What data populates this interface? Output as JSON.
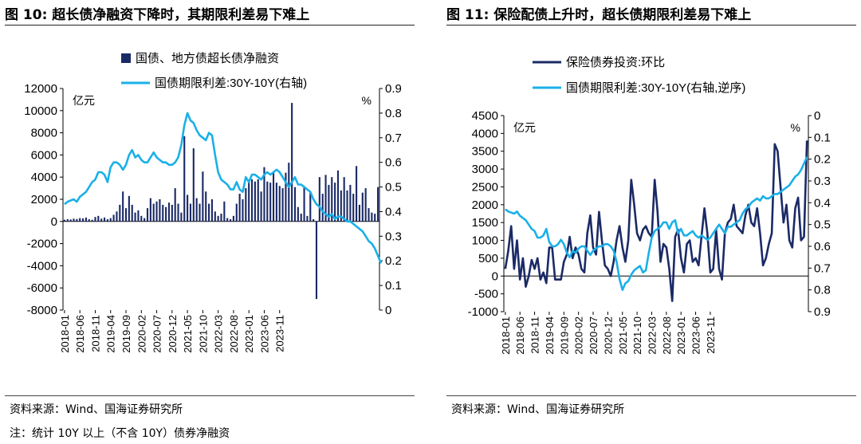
{
  "left": {
    "fig_label": "图 10:",
    "title": "超长债净融资下降时，其期限利差易下难上",
    "source": "资料来源：Wind、国海证券研究所",
    "note": "注：统计 10Y 以上（不含 10Y）债券净融资"
  },
  "right": {
    "fig_label": "图 11:",
    "title": "保险配债上升时，超长债期限利差易下难上",
    "source": "资料来源：Wind、国海证券研究所"
  },
  "chart_data": [
    {
      "type": "bar+line",
      "title": "超长债净融资下降时，其期限利差易下难上",
      "unit_left": "亿元",
      "unit_right": "%",
      "yleft_lim": [
        -8000,
        12000
      ],
      "yleft_ticks": [
        "12000",
        "10000",
        "8000",
        "6000",
        "4000",
        "2000",
        "0",
        "-2000",
        "-4000",
        "-6000",
        "-8000"
      ],
      "yright_lim": [
        0,
        0.9
      ],
      "yright_ticks": [
        "0.9",
        "0.8",
        "0.7",
        "0.6",
        "0.5",
        "0.4",
        "0.3",
        "0.2",
        "0.1",
        "0"
      ],
      "x_start": "2018-01",
      "x_ticks": [
        "2018-01",
        "2018-06",
        "2018-11",
        "2019-04",
        "2019-09",
        "2020-02",
        "2020-07",
        "2020-12",
        "2021-05",
        "2021-10",
        "2022-03",
        "2022-08",
        "2023-01",
        "2023-06",
        "2023-11"
      ],
      "legend": [
        "国债、地方债超长债净融资",
        "国债期限利差:30Y-10Y(右轴)"
      ],
      "colors": {
        "bars": "#1b2a66",
        "spread": "#1ab0e8"
      },
      "series": [
        {
          "name": "国债、地方债超长债净融资",
          "axis": "left",
          "kind": "bar",
          "values": [
            150,
            200,
            180,
            250,
            220,
            300,
            280,
            350,
            200,
            150,
            400,
            500,
            250,
            350,
            200,
            300,
            600,
            900,
            1500,
            2700,
            1200,
            2300,
            1500,
            800,
            1000,
            500,
            300,
            1200,
            2100,
            1600,
            1800,
            2000,
            1500,
            1300,
            1700,
            1500,
            3000,
            1600,
            800,
            7700,
            2400,
            1600,
            6600,
            2100,
            1600,
            4500,
            2700,
            1600,
            2000,
            900,
            500,
            700,
            1800,
            300,
            200,
            500,
            1600,
            2500,
            2000,
            3000,
            3500,
            3800,
            3600,
            3800,
            2700,
            4900,
            3600,
            3500,
            4500,
            3500,
            3200,
            3000,
            4400,
            5300,
            10700,
            3100,
            1300,
            700,
            3200,
            500,
            2700,
            200,
            -7000,
            4000,
            2500,
            4200,
            3300,
            4000,
            3500,
            4600,
            2800,
            4000,
            2800,
            3300,
            2500,
            5000,
            1500,
            2600,
            3000,
            1200,
            800,
            700,
            3100
          ]
        },
        {
          "name": "国债期限利差:30Y-10Y(右轴)",
          "axis": "right",
          "kind": "line",
          "values": [
            0.43,
            0.44,
            0.445,
            0.45,
            0.44,
            0.46,
            0.47,
            0.48,
            0.5,
            0.52,
            0.53,
            0.56,
            0.56,
            0.55,
            0.52,
            0.58,
            0.6,
            0.6,
            0.59,
            0.57,
            0.59,
            0.63,
            0.65,
            0.62,
            0.63,
            0.61,
            0.6,
            0.6,
            0.62,
            0.64,
            0.62,
            0.61,
            0.6,
            0.6,
            0.59,
            0.59,
            0.6,
            0.62,
            0.67,
            0.75,
            0.8,
            0.77,
            0.76,
            0.73,
            0.71,
            0.7,
            0.69,
            0.72,
            0.71,
            0.63,
            0.56,
            0.53,
            0.52,
            0.51,
            0.49,
            0.49,
            0.52,
            0.49,
            0.48,
            0.54,
            0.52,
            0.55,
            0.55,
            0.54,
            0.53,
            0.55,
            0.56,
            0.55,
            0.56,
            0.57,
            0.56,
            0.54,
            0.52,
            0.5,
            0.52,
            0.54,
            0.51,
            0.51,
            0.5,
            0.49,
            0.48,
            0.45,
            0.43,
            0.42,
            0.4,
            0.39,
            0.38,
            0.39,
            0.37,
            0.38,
            0.38,
            0.37,
            0.36,
            0.36,
            0.35,
            0.34,
            0.33,
            0.32,
            0.3,
            0.28,
            0.27,
            0.25,
            0.22,
            0.19
          ]
        }
      ]
    },
    {
      "type": "line",
      "title": "保险配债上升时，超长债期限利差易下难上",
      "unit_left": "亿元",
      "unit_right": "%",
      "yleft_lim": [
        -1000,
        4500
      ],
      "yleft_ticks": [
        "4500",
        "4000",
        "3500",
        "3000",
        "2500",
        "2000",
        "1500",
        "1000",
        "500",
        "0",
        "-500",
        "-1000"
      ],
      "yright_lim": [
        0,
        0.9
      ],
      "yright_inverted": true,
      "yright_ticks": [
        "0",
        "0.1",
        "0.2",
        "0.3",
        "0.4",
        "0.5",
        "0.6",
        "0.7",
        "0.8",
        "0.9"
      ],
      "x_start": "2018-01",
      "x_ticks": [
        "2018-01",
        "2018-06",
        "2018-11",
        "2019-04",
        "2019-09",
        "2020-02",
        "2020-07",
        "2020-12",
        "2021-05",
        "2021-10",
        "2022-03",
        "2022-08",
        "2023-01",
        "2023-06",
        "2023-11"
      ],
      "legend": [
        "保险债券投资:环比",
        "国债期限利差:30Y-10Y(右轴,逆序)"
      ],
      "colors": {
        "insurance": "#1b2a66",
        "spread": "#1ab0e8"
      },
      "series": [
        {
          "name": "保险债券投资:环比",
          "axis": "left",
          "kind": "line",
          "values": [
            200,
            700,
            1400,
            200,
            1000,
            -100,
            500,
            -300,
            0,
            450,
            200,
            500,
            -100,
            100,
            -200,
            800,
            800,
            -100,
            -100,
            -100,
            400,
            600,
            1100,
            500,
            800,
            600,
            200,
            100,
            1200,
            1700,
            800,
            600,
            1800,
            1000,
            300,
            200,
            0,
            400,
            1000,
            1400,
            800,
            400,
            1000,
            2700,
            2000,
            1200,
            1000,
            1300,
            1400,
            1200,
            1100,
            2700,
            1800,
            400,
            900,
            800,
            200,
            -700,
            1100,
            1300,
            500,
            100,
            900,
            1000,
            400,
            500,
            300,
            1100,
            1900,
            1200,
            100,
            200,
            1300,
            200,
            -100,
            1200,
            1500,
            1600,
            2000,
            1400,
            1300,
            1200,
            1700,
            2000,
            1500,
            1400,
            1900,
            1200,
            300,
            500,
            900,
            1200,
            3700,
            3500,
            2500,
            1500,
            2000,
            1000,
            800,
            1900,
            2200,
            1000,
            1100,
            3800
          ]
        },
        {
          "name": "国债期限利差:30Y-10Y(右轴,逆序)",
          "axis": "right",
          "kind": "line",
          "values": [
            0.43,
            0.44,
            0.445,
            0.45,
            0.44,
            0.46,
            0.47,
            0.48,
            0.5,
            0.52,
            0.53,
            0.56,
            0.56,
            0.55,
            0.52,
            0.58,
            0.6,
            0.6,
            0.59,
            0.57,
            0.59,
            0.63,
            0.65,
            0.62,
            0.63,
            0.61,
            0.6,
            0.6,
            0.62,
            0.64,
            0.62,
            0.61,
            0.6,
            0.6,
            0.59,
            0.59,
            0.6,
            0.62,
            0.67,
            0.75,
            0.8,
            0.77,
            0.76,
            0.73,
            0.71,
            0.7,
            0.69,
            0.72,
            0.71,
            0.63,
            0.56,
            0.53,
            0.52,
            0.51,
            0.49,
            0.49,
            0.52,
            0.49,
            0.48,
            0.54,
            0.52,
            0.55,
            0.55,
            0.54,
            0.53,
            0.55,
            0.56,
            0.55,
            0.56,
            0.57,
            0.56,
            0.54,
            0.52,
            0.5,
            0.52,
            0.54,
            0.51,
            0.51,
            0.5,
            0.49,
            0.48,
            0.45,
            0.43,
            0.42,
            0.4,
            0.39,
            0.38,
            0.39,
            0.37,
            0.38,
            0.38,
            0.37,
            0.36,
            0.36,
            0.35,
            0.34,
            0.33,
            0.32,
            0.3,
            0.28,
            0.27,
            0.25,
            0.22,
            0.19
          ]
        }
      ]
    }
  ]
}
